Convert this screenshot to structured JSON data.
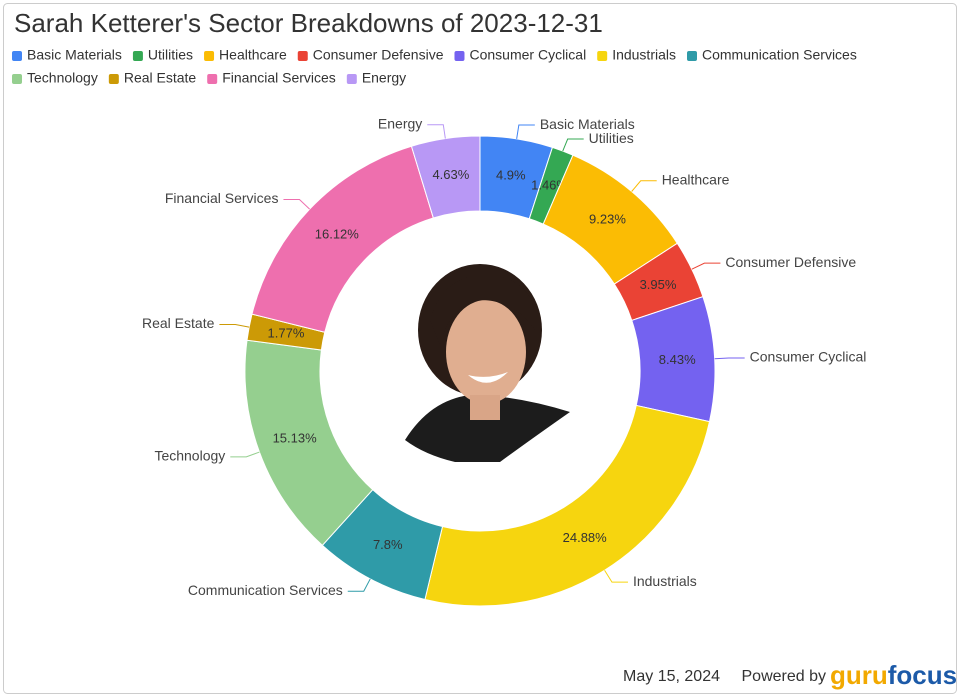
{
  "chart_data": {
    "type": "pie",
    "donut": true,
    "title": "Sarah Ketterer's Sector Breakdowns of 2023-12-31",
    "categories": [
      "Basic Materials",
      "Utilities",
      "Healthcare",
      "Consumer Defensive",
      "Consumer Cyclical",
      "Industrials",
      "Communication Services",
      "Technology",
      "Real Estate",
      "Financial Services",
      "Energy"
    ],
    "values": [
      4.9,
      1.46,
      9.23,
      3.95,
      8.43,
      24.88,
      7.8,
      15.13,
      1.77,
      16.12,
      4.63
    ],
    "value_labels": [
      "4.9%",
      "1.46%",
      "9.23%",
      "3.95%",
      "8.43%",
      "24.88%",
      "7.8%",
      "15.13%",
      "1.77%",
      "16.12%",
      "4.63%"
    ],
    "colors": [
      "#4285f4",
      "#34a853",
      "#fbbc04",
      "#ea4335",
      "#7462f0",
      "#f6d50f",
      "#2f9ba8",
      "#95cf8f",
      "#cc9a06",
      "#ee6fae",
      "#b898f5"
    ],
    "legend": "top"
  },
  "footer": {
    "date": "May 15, 2024",
    "powered_by": "Powered by",
    "brand_a": "guru",
    "brand_b": "focus"
  }
}
